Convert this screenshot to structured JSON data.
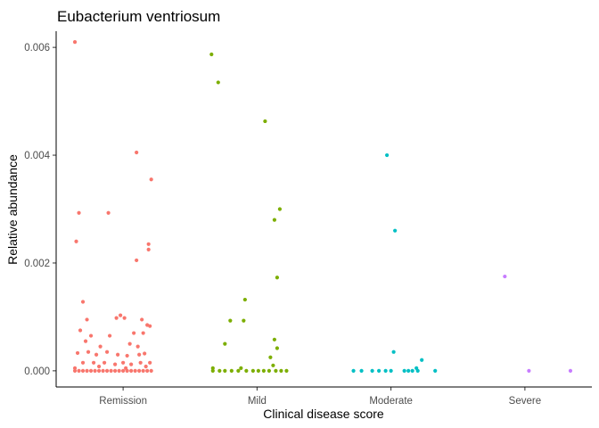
{
  "chart_data": {
    "type": "scatter",
    "title": "Eubacterium ventriosum",
    "xlabel": "Clinical disease score",
    "ylabel": "Relative abundance",
    "categories": [
      "Remission",
      "Mild",
      "Moderate",
      "Severe"
    ],
    "ylim": [
      -0.0003,
      0.0063
    ],
    "yticks": [
      "0.000",
      "0.002",
      "0.004",
      "0.006"
    ],
    "ytick_values": [
      0,
      0.002,
      0.004,
      0.006
    ],
    "grid": false,
    "legend": "none",
    "colors": {
      "Remission": "#F8766D",
      "Mild": "#7CAE00",
      "Moderate": "#00BFC4",
      "Severe": "#C77CFF"
    },
    "series": [
      {
        "category": "Remission",
        "points": [
          [
            -0.36,
            0.0061
          ],
          [
            -0.35,
            0.0024
          ],
          [
            -0.33,
            0.00293
          ],
          [
            -0.11,
            0.00293
          ],
          [
            0.1,
            0.00405
          ],
          [
            0.1,
            0.00205
          ],
          [
            0.19,
            0.00235
          ],
          [
            0.19,
            0.00225
          ],
          [
            0.21,
            0.00355
          ],
          [
            -0.3,
            0.00128
          ],
          [
            -0.27,
            0.00095
          ],
          [
            -0.24,
            0.00065
          ],
          [
            -0.32,
            0.00075
          ],
          [
            -0.05,
            0.00098
          ],
          [
            -0.02,
            0.00103
          ],
          [
            0.01,
            0.00098
          ],
          [
            0.14,
            0.00095
          ],
          [
            -0.28,
            0.00055
          ],
          [
            -0.1,
            0.00065
          ],
          [
            0.18,
            0.00085
          ],
          [
            0.2,
            0.00083
          ],
          [
            0.15,
            0.0007
          ],
          [
            0.08,
            0.0007
          ],
          [
            -0.17,
            0.00045
          ],
          [
            0.05,
            0.0005
          ],
          [
            0.11,
            0.00045
          ],
          [
            -0.34,
            0.00033
          ],
          [
            -0.26,
            0.00035
          ],
          [
            -0.2,
            0.0003
          ],
          [
            -0.12,
            0.00035
          ],
          [
            -0.04,
            0.0003
          ],
          [
            0.03,
            0.00028
          ],
          [
            0.12,
            0.0003
          ],
          [
            0.16,
            0.00032
          ],
          [
            -0.3,
            0.00015
          ],
          [
            -0.22,
            0.00015
          ],
          [
            -0.14,
            0.00015
          ],
          [
            -0.06,
            0.00012
          ],
          [
            0.0,
            0.00015
          ],
          [
            0.06,
            0.00012
          ],
          [
            0.13,
            0.00015
          ],
          [
            0.2,
            0.00015
          ],
          [
            -0.36,
            5e-05
          ],
          [
            -0.18,
            8e-05
          ],
          [
            0.02,
            5e-05
          ],
          [
            0.17,
            8e-05
          ],
          [
            -0.36,
            0
          ],
          [
            -0.33,
            0
          ],
          [
            -0.3,
            0
          ],
          [
            -0.27,
            0
          ],
          [
            -0.24,
            0
          ],
          [
            -0.21,
            0
          ],
          [
            -0.18,
            0
          ],
          [
            -0.15,
            0
          ],
          [
            -0.12,
            0
          ],
          [
            -0.09,
            0
          ],
          [
            -0.06,
            0
          ],
          [
            -0.03,
            0
          ],
          [
            0.0,
            0
          ],
          [
            0.03,
            0
          ],
          [
            0.06,
            0
          ],
          [
            0.09,
            0
          ],
          [
            0.12,
            0
          ],
          [
            0.15,
            0
          ],
          [
            0.18,
            0
          ],
          [
            0.21,
            0
          ]
        ]
      },
      {
        "category": "Mild",
        "points": [
          [
            -0.34,
            0.00587
          ],
          [
            -0.29,
            0.00535
          ],
          [
            0.06,
            0.00463
          ],
          [
            0.17,
            0.003
          ],
          [
            0.13,
            0.0028
          ],
          [
            0.15,
            0.00173
          ],
          [
            -0.09,
            0.00132
          ],
          [
            -0.2,
            0.00093
          ],
          [
            -0.1,
            0.00093
          ],
          [
            0.13,
            0.00058
          ],
          [
            -0.24,
            0.0005
          ],
          [
            0.15,
            0.00042
          ],
          [
            0.1,
            0.00025
          ],
          [
            -0.33,
            5e-05
          ],
          [
            -0.12,
            5e-05
          ],
          [
            0.12,
            0.0001
          ],
          [
            -0.33,
            0
          ],
          [
            -0.28,
            0
          ],
          [
            -0.24,
            0
          ],
          [
            -0.19,
            0
          ],
          [
            -0.14,
            0
          ],
          [
            -0.08,
            0
          ],
          [
            -0.03,
            0
          ],
          [
            0.01,
            0
          ],
          [
            0.05,
            0
          ],
          [
            0.09,
            0
          ],
          [
            0.14,
            0
          ],
          [
            0.18,
            0
          ],
          [
            0.22,
            0
          ]
        ]
      },
      {
        "category": "Moderate",
        "points": [
          [
            -0.03,
            0.004
          ],
          [
            0.03,
            0.0026
          ],
          [
            0.02,
            0.00035
          ],
          [
            0.23,
            0.0002
          ],
          [
            0.19,
            5e-05
          ],
          [
            -0.28,
            0
          ],
          [
            -0.22,
            0
          ],
          [
            -0.14,
            0
          ],
          [
            -0.09,
            0
          ],
          [
            -0.04,
            0
          ],
          [
            0.0,
            0
          ],
          [
            0.1,
            0
          ],
          [
            0.13,
            0
          ],
          [
            0.16,
            0
          ],
          [
            0.2,
            0
          ],
          [
            0.33,
            0
          ]
        ]
      },
      {
        "category": "Severe",
        "points": [
          [
            -0.15,
            0.00175
          ],
          [
            0.03,
            0
          ],
          [
            0.34,
            0
          ]
        ]
      }
    ]
  }
}
